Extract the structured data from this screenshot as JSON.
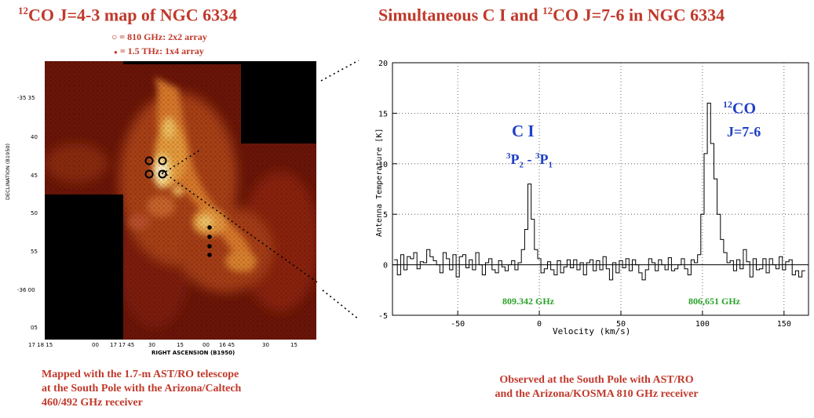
{
  "left_panel": {
    "title": {
      "sup": "12",
      "text": "CO J=4-3 map of NGC 6334"
    },
    "legend": {
      "open": {
        "symbol": "○",
        "text": "= 810 GHz: 2x2 array"
      },
      "filled": {
        "symbol": "●",
        "text": "= 1.5 THz:  1x4 array"
      }
    },
    "map": {
      "ylabel": "DECLINATION (B1950)",
      "xlabel": "RIGHT ASCENSION (B1950)",
      "y_ticks": [
        "-35 35",
        "40",
        "45",
        "50",
        "55",
        "-36 00",
        "05"
      ],
      "x_ticks": [
        "17 18 15",
        "00",
        "17 17 45",
        "30",
        "15",
        "00",
        "16 45",
        "30",
        "15"
      ],
      "colormap": "black-red-orange-yellow-white",
      "markers": {
        "open_circles": 4,
        "filled_dots": 4
      }
    },
    "caption": [
      "Mapped with the 1.7-m AST/RO telescope",
      "at the South Pole with the Arizona/Caltech",
      "460/492 GHz receiver"
    ]
  },
  "right_panel": {
    "title": {
      "pre": "Simultaneous C I and ",
      "sup": "12",
      "post": "CO J=7-6 in NGC 6334"
    },
    "caption": [
      "Observed at the South Pole with AST/RO",
      "and the Arizona/KOSMA 810 GHz receiver"
    ],
    "annotations": {
      "ci_name": "C I",
      "ci_trans": {
        "s1": "3",
        "p1": "P",
        "b1": "2",
        "dash": " - ",
        "s2": "3",
        "p2": "P",
        "b2": "1"
      },
      "co_sup": "12",
      "co_name": "CO",
      "co_trans": "J=7-6",
      "freq_ci": "809.342 GHz",
      "freq_co": "806,651 GHz"
    }
  },
  "chart_data": {
    "type": "line",
    "title": "",
    "xlabel": "Velocity  (km/s)",
    "ylabel": "Antenna Temperature  [K]",
    "xlim": [
      -90,
      165
    ],
    "ylim": [
      -5,
      20
    ],
    "x_ticks": [
      -50,
      0,
      50,
      100,
      150
    ],
    "y_ticks": [
      -5,
      0,
      5,
      10,
      15,
      20
    ],
    "grid": true,
    "grid_style": "dotted",
    "series": [
      {
        "x": [
          -88,
          -86,
          -84,
          -82,
          -80,
          -78,
          -76,
          -74,
          -72,
          -70,
          -68,
          -66,
          -64,
          -62,
          -60,
          -58,
          -56,
          -54,
          -52,
          -50,
          -48,
          -46,
          -44,
          -42,
          -40,
          -38,
          -36,
          -34,
          -32,
          -30,
          -28,
          -26,
          -24,
          -22,
          -20,
          -18,
          -16,
          -14,
          -12,
          -10,
          -8,
          -6,
          -4,
          -2,
          0,
          2,
          4,
          6,
          8,
          10,
          12,
          14,
          16,
          18,
          20,
          22,
          24,
          26,
          28,
          30,
          32,
          34,
          36,
          38,
          40,
          42,
          44,
          46,
          48,
          50,
          52,
          54,
          56,
          58,
          60,
          62,
          64,
          66,
          68,
          70,
          72,
          74,
          76,
          78,
          80,
          82,
          84,
          86,
          88,
          90,
          92,
          94,
          96,
          98,
          100,
          102,
          104,
          106,
          108,
          110,
          112,
          114,
          116,
          118,
          120,
          122,
          124,
          126,
          128,
          130,
          132,
          134,
          136,
          138,
          140,
          142,
          144,
          146,
          148,
          150,
          152,
          154,
          156,
          158,
          160,
          162
        ],
        "y": [
          0.5,
          -1.0,
          1.0,
          -0.5,
          0.8,
          0.6,
          1.2,
          -0.4,
          0.3,
          0.2,
          1.5,
          0.8,
          0.4,
          0.0,
          -0.8,
          1.2,
          0.6,
          -0.5,
          1.0,
          -1.2,
          0.8,
          1.0,
          -0.3,
          0.5,
          -0.5,
          1.2,
          0.0,
          -1.0,
          0.2,
          0.6,
          -0.5,
          -0.8,
          0.4,
          -0.2,
          -0.6,
          0.0,
          0.4,
          -0.5,
          0.2,
          1.5,
          3.5,
          8.0,
          4.5,
          1.5,
          0.6,
          -0.8,
          -0.4,
          0.3,
          -0.5,
          -1.0,
          0.4,
          -0.8,
          -0.2,
          0.5,
          -0.3,
          0.5,
          -0.5,
          0.2,
          -1.0,
          0.2,
          0.5,
          -0.6,
          0.4,
          -0.5,
          0.8,
          -0.4,
          -1.5,
          0.2,
          -0.8,
          0.4,
          -0.3,
          0.6,
          -0.6,
          0.5,
          0.0,
          -0.8,
          -1.5,
          -0.5,
          0.6,
          0.2,
          -0.6,
          0.5,
          0.0,
          -0.5,
          0.7,
          -0.6,
          -0.4,
          0.0,
          0.6,
          -0.4,
          -1.0,
          0.5,
          0.2,
          1.0,
          5.0,
          11.0,
          16.0,
          12.0,
          8.5,
          5.0,
          2.5,
          1.2,
          0.2,
          0.4,
          -0.6,
          0.5,
          -0.4,
          1.5,
          0.3,
          -1.2,
          0.6,
          -0.5,
          -0.4,
          0.6,
          -0.8,
          0.6,
          0.0,
          -0.4,
          0.8,
          -0.5,
          0.3,
          0.5,
          -1.0,
          -0.6,
          -1.2,
          -0.6
        ]
      }
    ]
  }
}
